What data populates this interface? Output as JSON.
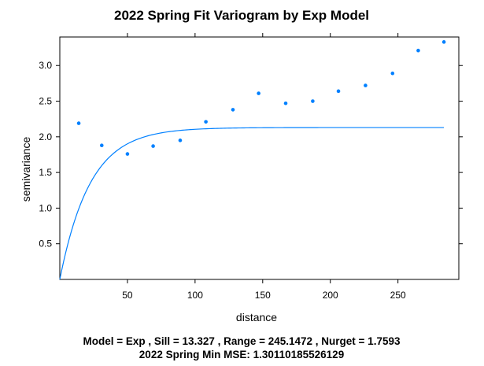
{
  "chart_data": {
    "type": "scatter",
    "title": "2022 Spring Fit Variogram by Exp Model",
    "xlabel": "distance",
    "ylabel": "semivariance",
    "xlim": [
      0,
      295
    ],
    "ylim": [
      0,
      3.4
    ],
    "x_ticks": [
      50,
      100,
      150,
      200,
      250
    ],
    "y_ticks": [
      0.5,
      1.0,
      1.5,
      2.0,
      2.5,
      3.0
    ],
    "y_tick_labels": [
      "0.5",
      "1.0",
      "1.5",
      "2.0",
      "2.5",
      "3.0"
    ],
    "grid": false,
    "point_color": "#0080ff",
    "line_color": "#0080ff",
    "points": [
      {
        "x": 14,
        "y": 2.19
      },
      {
        "x": 31,
        "y": 1.88
      },
      {
        "x": 50,
        "y": 1.76
      },
      {
        "x": 69,
        "y": 1.87
      },
      {
        "x": 89,
        "y": 1.95
      },
      {
        "x": 108,
        "y": 2.21
      },
      {
        "x": 128,
        "y": 2.38
      },
      {
        "x": 147,
        "y": 2.61
      },
      {
        "x": 167,
        "y": 2.47
      },
      {
        "x": 187,
        "y": 2.5
      },
      {
        "x": 206,
        "y": 2.64
      },
      {
        "x": 226,
        "y": 2.72
      },
      {
        "x": 246,
        "y": 2.89
      },
      {
        "x": 265,
        "y": 3.21
      },
      {
        "x": 284,
        "y": 3.33
      }
    ],
    "fitted_line": {
      "model": "Exp",
      "x_range": [
        0,
        284
      ],
      "asymptote": 2.13,
      "scale": 22.4
    },
    "captions": [
      "Model = Exp , Sill = 13.327 , Range = 245.1472 , Nurget = 1.7593",
      "2022 Spring Min MSE: 1.30110185526129"
    ]
  }
}
